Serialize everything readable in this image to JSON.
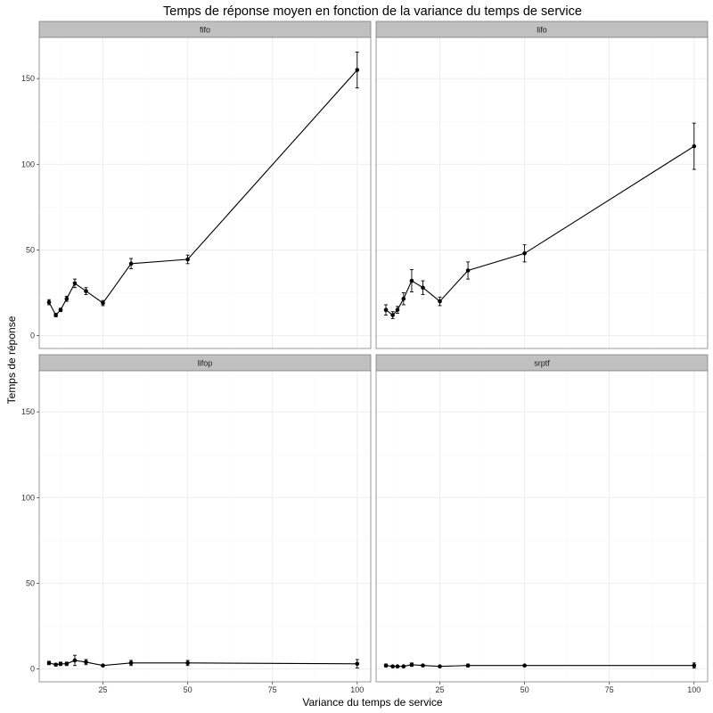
{
  "chart_data": {
    "type": "line",
    "title": "Temps de réponse moyen en fonction de la variance du temps de service",
    "xlabel": "Variance du temps de service",
    "ylabel": "Temps de réponse",
    "xlim": [
      6.2,
      104
    ],
    "ylim": [
      -7.5,
      174
    ],
    "x_ticks": [
      25,
      50,
      75,
      100
    ],
    "y_ticks": [
      0,
      50,
      100,
      150
    ],
    "grid": true,
    "error_bars": true,
    "colors": {
      "line": "#000000",
      "strip": "#c0c0c0",
      "panel_border": "#808080",
      "grid_major": "#ebebeb",
      "grid_minor": "#f5f5f5"
    },
    "panels": [
      {
        "name": "fifo",
        "x": [
          9.09,
          11.1,
          12.5,
          14.3,
          16.7,
          20,
          25,
          33.3,
          50,
          100
        ],
        "y": [
          19.5,
          12,
          15,
          21.5,
          30.5,
          26,
          19,
          42,
          44.5,
          155
        ],
        "err": [
          1.5,
          1,
          1,
          1.5,
          2.5,
          2,
          1.5,
          3,
          2.5,
          10.5
        ]
      },
      {
        "name": "lifo",
        "x": [
          9.09,
          11.1,
          12.5,
          14.3,
          16.7,
          20,
          25,
          33.3,
          50,
          100
        ],
        "y": [
          15,
          12,
          15,
          21.5,
          32,
          28,
          20,
          38,
          48,
          110.5
        ],
        "err": [
          3,
          2,
          2,
          3.5,
          6.5,
          4,
          2.5,
          5,
          5,
          13.5
        ]
      },
      {
        "name": "lifop",
        "x": [
          9.09,
          11.1,
          12.5,
          14.3,
          16.7,
          20,
          25,
          33.3,
          50,
          100
        ],
        "y": [
          3.5,
          2.5,
          3,
          3,
          5,
          4,
          2,
          3.5,
          3.5,
          3
        ],
        "err": [
          1,
          0.8,
          1,
          1,
          3,
          1.5,
          0.5,
          1.5,
          1.5,
          2.5
        ]
      },
      {
        "name": "srptf",
        "x": [
          9.09,
          11.1,
          12.5,
          14.3,
          16.7,
          20,
          25,
          33.3,
          50,
          100
        ],
        "y": [
          2,
          1.5,
          1.5,
          1.5,
          2.5,
          2,
          1.5,
          2,
          2,
          2
        ],
        "err": [
          0.8,
          0.5,
          0.5,
          0.5,
          1,
          0.5,
          0.3,
          0.8,
          0.5,
          1.5
        ]
      }
    ]
  }
}
